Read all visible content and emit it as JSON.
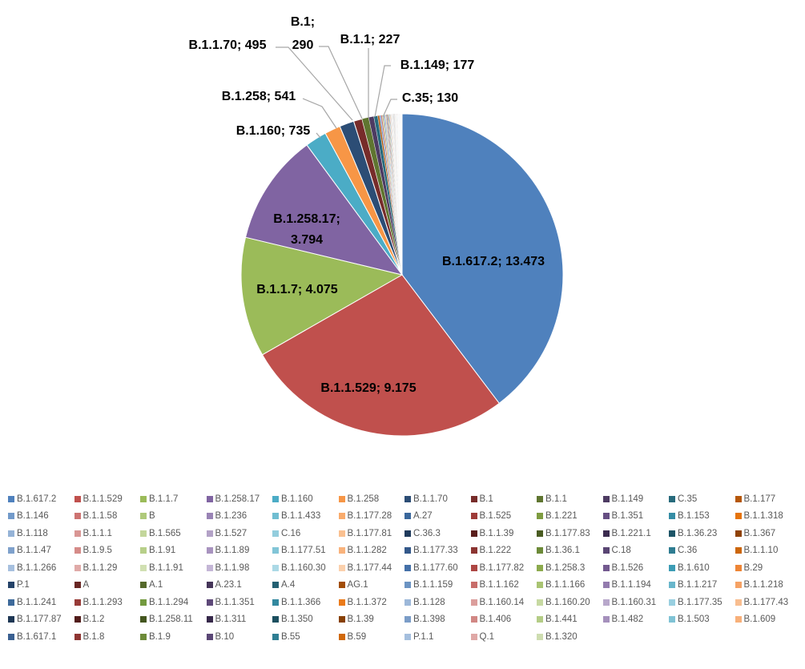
{
  "chart_data": {
    "type": "pie",
    "title": "",
    "slices": [
      {
        "name": "B.1.617.2",
        "value": 13473,
        "label": "B.1.617.2; 13.473",
        "color": "#4F81BD"
      },
      {
        "name": "B.1.1.529",
        "value": 9175,
        "label": "B.1.1.529; 9.175",
        "color": "#C0504D"
      },
      {
        "name": "B.1.1.7",
        "value": 4075,
        "label": "B.1.1.7; 4.075",
        "color": "#9BBB59"
      },
      {
        "name": "B.1.258.17",
        "value": 3794,
        "label": "B.1.258.17; 3.794",
        "color": "#8064A2"
      },
      {
        "name": "B.1.160",
        "value": 735,
        "label": "B.1.160; 735",
        "color": "#4BACC6"
      },
      {
        "name": "B.1.258",
        "value": 541,
        "label": "B.1.258; 541",
        "color": "#F79646"
      },
      {
        "name": "B.1.1.70",
        "value": 495,
        "label": "B.1.1.70; 495",
        "color": "#2C4D75"
      },
      {
        "name": "B.1",
        "value": 290,
        "label": "B.1; 290",
        "color": "#772C2A"
      },
      {
        "name": "B.1.1",
        "value": 227,
        "label": "B.1.1; 227",
        "color": "#5F7530"
      },
      {
        "name": "B.1.149",
        "value": 177,
        "label": "B.1.149; 177",
        "color": "#4D3B62"
      },
      {
        "name": "C.35",
        "value": 130,
        "label": "C.35; 130",
        "color": "#276A7C"
      },
      {
        "name": "B.1.177",
        "value": 60,
        "color": "#B65708"
      },
      {
        "name": "B.1.146",
        "value": 50,
        "color": "#729ACA"
      },
      {
        "name": "B.1.1.58",
        "value": 45,
        "color": "#CD7371"
      },
      {
        "name": "B",
        "value": 40,
        "color": "#AFC97A"
      },
      {
        "name": "B.1.236",
        "value": 36,
        "color": "#9983B5"
      },
      {
        "name": "B.1.1.433",
        "value": 32,
        "color": "#6FBDD1"
      },
      {
        "name": "B.1.177.28",
        "value": 30,
        "color": "#F9AB6B"
      },
      {
        "name": "A.27",
        "value": 28,
        "color": "#3A679C"
      },
      {
        "name": "B.1.525",
        "value": 26,
        "color": "#9E3B38"
      },
      {
        "name": "B.1.221",
        "value": 24,
        "color": "#7E9C40"
      },
      {
        "name": "B.1.351",
        "value": 22,
        "color": "#664F83"
      },
      {
        "name": "B.1.153",
        "value": 20,
        "color": "#358DA5"
      },
      {
        "name": "B.1.1.318",
        "value": 19,
        "color": "#E6740C"
      },
      {
        "name": "B.1.118",
        "value": 18,
        "color": "#95B3D7"
      },
      {
        "name": "B.1.1.1",
        "value": 17,
        "color": "#D99694"
      },
      {
        "name": "B.1.565",
        "value": 16,
        "color": "#C3D69B"
      },
      {
        "name": "B.1.527",
        "value": 15,
        "color": "#B3A2C7"
      },
      {
        "name": "C.16",
        "value": 14,
        "color": "#93CDDD"
      },
      {
        "name": "B.1.177.81",
        "value": 13,
        "color": "#FAC090"
      },
      {
        "name": "C.36.3",
        "value": 12,
        "color": "#1F3A5C"
      },
      {
        "name": "B.1.1.39",
        "value": 12,
        "color": "#5A1E1C"
      },
      {
        "name": "B.1.177.83",
        "value": 11,
        "color": "#4A5C22"
      },
      {
        "name": "B.1.221.1",
        "value": 11,
        "color": "#3B2B4F"
      },
      {
        "name": "B.1.36.23",
        "value": 10,
        "color": "#1D5567"
      },
      {
        "name": "B.1.367",
        "value": 10,
        "color": "#8F4205"
      },
      {
        "name": "B.1.1.47",
        "value": 9,
        "color": "#7FA1CC"
      },
      {
        "name": "B.1.9.5",
        "value": 9,
        "color": "#D58B88"
      },
      {
        "name": "B.1.91",
        "value": 9,
        "color": "#B7CF89"
      },
      {
        "name": "B.1.1.89",
        "value": 8,
        "color": "#A893BF"
      },
      {
        "name": "B.1.177.51",
        "value": 8,
        "color": "#82C5D7"
      },
      {
        "name": "B.1.1.282",
        "value": 8,
        "color": "#F9B37C"
      },
      {
        "name": "B.1.177.33",
        "value": 7,
        "color": "#33588A"
      },
      {
        "name": "B.1.222",
        "value": 7,
        "color": "#8B3431"
      },
      {
        "name": "B.1.36.1",
        "value": 7,
        "color": "#6C8A38"
      },
      {
        "name": "C.18",
        "value": 7,
        "color": "#594573"
      },
      {
        "name": "C.36",
        "value": 6,
        "color": "#2E7C91"
      },
      {
        "name": "B.1.1.10",
        "value": 6,
        "color": "#CC660A"
      },
      {
        "name": "B.1.1.266",
        "value": 6,
        "color": "#A7C0DF"
      },
      {
        "name": "B.1.1.29",
        "value": 6,
        "color": "#E0AAA8"
      },
      {
        "name": "B.1.1.91",
        "value": 5,
        "color": "#D1E0B2"
      },
      {
        "name": "B.1.1.98",
        "value": 5,
        "color": "#C4B6D6"
      },
      {
        "name": "B.1.160.30",
        "value": 5,
        "color": "#ABD9E6"
      },
      {
        "name": "B.1.177.44",
        "value": 5,
        "color": "#FBD0AC"
      },
      {
        "name": "B.1.177.60",
        "value": 5,
        "color": "#4470A8"
      },
      {
        "name": "B.1.177.82",
        "value": 4,
        "color": "#AD4643"
      },
      {
        "name": "B.1.258.3",
        "value": 4,
        "color": "#8CAA4D"
      },
      {
        "name": "B.1.526",
        "value": 4,
        "color": "#73598F"
      },
      {
        "name": "B.1.610",
        "value": 4,
        "color": "#3C9CB5"
      },
      {
        "name": "B.29",
        "value": 4,
        "color": "#EE8535"
      },
      {
        "name": "P.1",
        "value": 4,
        "color": "#254369"
      },
      {
        "name": "A",
        "value": 4,
        "color": "#682623"
      },
      {
        "name": "A.1",
        "value": 3,
        "color": "#55692B"
      },
      {
        "name": "A.23.1",
        "value": 3,
        "color": "#453559"
      },
      {
        "name": "A.4",
        "value": 3,
        "color": "#236072"
      },
      {
        "name": "AG.1",
        "value": 3,
        "color": "#A24D06"
      },
      {
        "name": "B.1.1.159",
        "value": 3,
        "color": "#6B93C3"
      },
      {
        "name": "B.1.1.162",
        "value": 3,
        "color": "#C86D6A"
      },
      {
        "name": "B.1.1.166",
        "value": 3,
        "color": "#A9C472"
      },
      {
        "name": "B.1.1.194",
        "value": 3,
        "color": "#937BAE"
      },
      {
        "name": "B.1.1.217",
        "value": 3,
        "color": "#68B6CB"
      },
      {
        "name": "B.1.1.218",
        "value": 3,
        "color": "#F6A264"
      },
      {
        "name": "B.1.1.241",
        "value": 2,
        "color": "#3E6A9B"
      },
      {
        "name": "B.1.1.293",
        "value": 2,
        "color": "#983B38"
      },
      {
        "name": "B.1.1.294",
        "value": 2,
        "color": "#739A3F"
      },
      {
        "name": "B.1.1.351",
        "value": 2,
        "color": "#5E4979"
      },
      {
        "name": "B.1.1.366",
        "value": 2,
        "color": "#32889F"
      },
      {
        "name": "B.1.1.372",
        "value": 2,
        "color": "#EB7B1A"
      },
      {
        "name": "B.1.128",
        "value": 2,
        "color": "#9DB8D9"
      },
      {
        "name": "B.1.160.14",
        "value": 2,
        "color": "#DB9E9C"
      },
      {
        "name": "B.1.160.20",
        "value": 2,
        "color": "#C7D9A2"
      },
      {
        "name": "B.1.160.31",
        "value": 2,
        "color": "#B8A8CB"
      },
      {
        "name": "B.1.177.35",
        "value": 2,
        "color": "#99CFE0"
      },
      {
        "name": "B.1.177.43",
        "value": 2,
        "color": "#F8BD8F"
      },
      {
        "name": "B.1.177.87",
        "value": 2,
        "color": "#1E3754"
      },
      {
        "name": "B.1.2",
        "value": 2,
        "color": "#521C1A"
      },
      {
        "name": "B.1.258.11",
        "value": 2,
        "color": "#44561F"
      },
      {
        "name": "B.1.311",
        "value": 2,
        "color": "#36284A"
      },
      {
        "name": "B.1.350",
        "value": 1,
        "color": "#1B4F5F"
      },
      {
        "name": "B.1.39",
        "value": 1,
        "color": "#874004"
      },
      {
        "name": "B.1.398",
        "value": 1,
        "color": "#7B9DC8"
      },
      {
        "name": "B.1.406",
        "value": 1,
        "color": "#D18784"
      },
      {
        "name": "B.1.441",
        "value": 1,
        "color": "#B4CD86"
      },
      {
        "name": "B.1.482",
        "value": 1,
        "color": "#A590BC"
      },
      {
        "name": "B.1.503",
        "value": 1,
        "color": "#7FC3D5"
      },
      {
        "name": "B.1.609",
        "value": 1,
        "color": "#F8B079"
      },
      {
        "name": "B.1.617.1",
        "value": 1,
        "color": "#3A6091"
      },
      {
        "name": "B.1.8",
        "value": 1,
        "color": "#8E3532"
      },
      {
        "name": "B.1.9",
        "value": 1,
        "color": "#6D8B39"
      },
      {
        "name": "B.10",
        "value": 1,
        "color": "#5A4675"
      },
      {
        "name": "B.55",
        "value": 1,
        "color": "#2F7E93"
      },
      {
        "name": "B.59",
        "value": 1,
        "color": "#D0680B"
      },
      {
        "name": "P.1.1",
        "value": 1,
        "color": "#A5BFDE"
      },
      {
        "name": "Q.1",
        "value": 1,
        "color": "#DFA8A6"
      },
      {
        "name": "B.1.320",
        "value": 1,
        "color": "#CEDDB0"
      }
    ],
    "legend_position": "bottom"
  }
}
